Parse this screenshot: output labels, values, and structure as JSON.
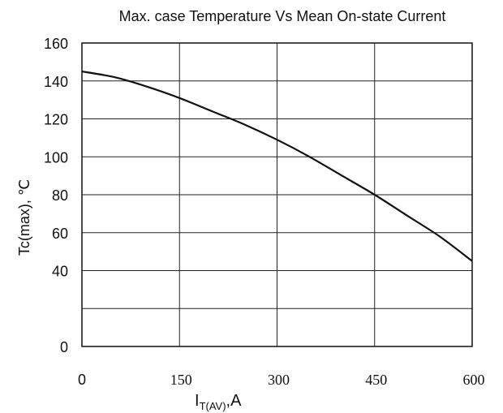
{
  "chart_data": {
    "type": "line",
    "title": "Max.   case Temperature Vs Mean  On-state Current",
    "ylabel": "Tc(max), ℃",
    "xlabel_main": "I",
    "xlabel_sub": "T(AV)",
    "xlabel_unit": ",A",
    "xlim": [
      0,
      600
    ],
    "ylim": [
      0,
      160
    ],
    "x_ticks": [
      0,
      150,
      300,
      450,
      600
    ],
    "y_ticks": [
      0,
      40,
      60,
      80,
      100,
      120,
      140,
      160
    ],
    "grid": true,
    "series": [
      {
        "x": [
          0,
          50,
          100,
          150,
          200,
          250,
          300,
          350,
          400,
          450,
          500,
          550,
          600
        ],
        "y": [
          145,
          142,
          137,
          131,
          124,
          117,
          109,
          100,
          90,
          80,
          69,
          58,
          45
        ]
      }
    ]
  }
}
